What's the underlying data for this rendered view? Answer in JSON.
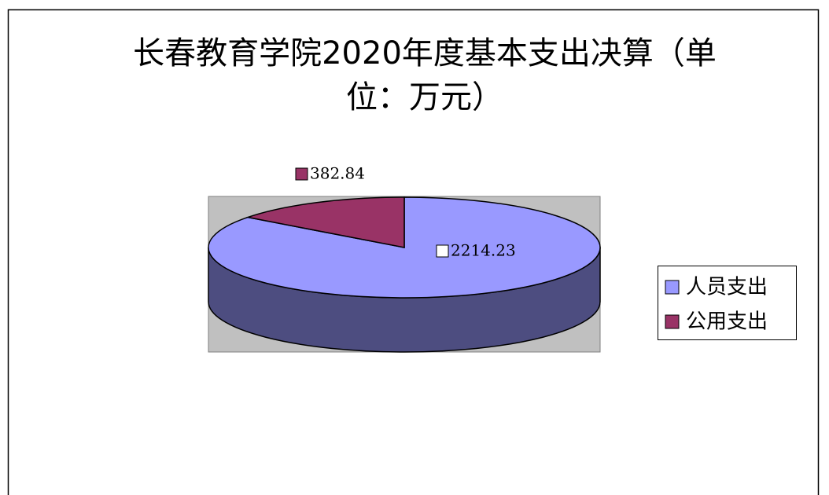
{
  "chart_data": {
    "type": "pie3d",
    "title": "长春教育学院2020年度基本支出决算（单位：万元）",
    "categories": [
      "人员支出",
      "公用支出"
    ],
    "values": [
      2214.23,
      382.84
    ],
    "colors": [
      "#9999ff",
      "#993366"
    ],
    "legend": "right"
  }
}
